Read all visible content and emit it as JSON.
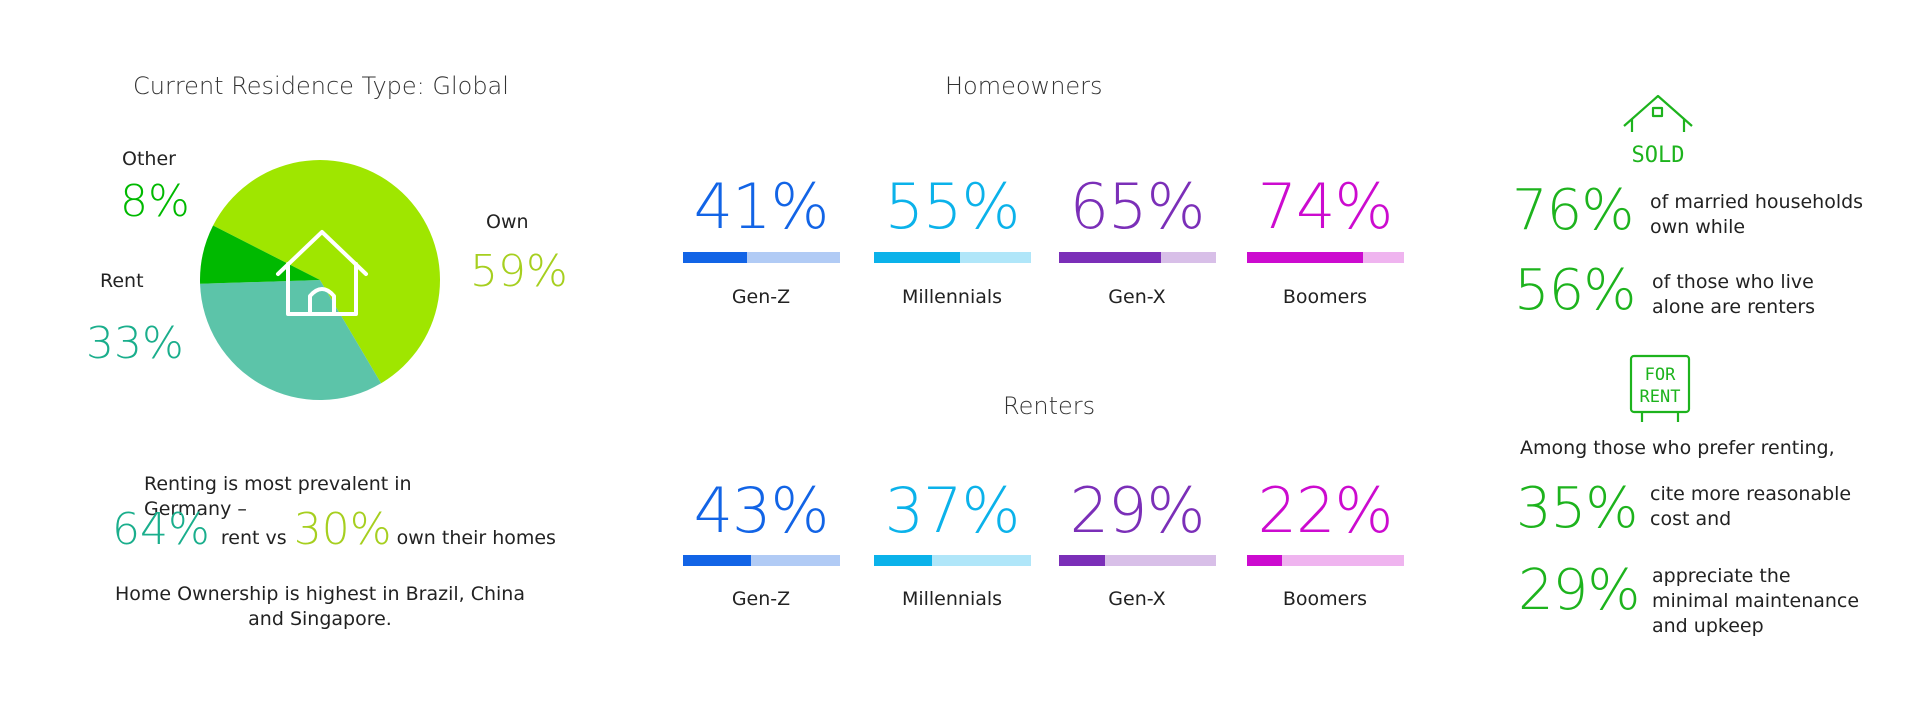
{
  "left": {
    "title": "Current Residence Type: Global",
    "germany_line": "Renting is most prevalent in Germany –",
    "germany_rent_pct": "64%",
    "germany_rent_label": "rent vs",
    "germany_own_pct": "30%",
    "germany_own_label": "own their homes",
    "ownership_line1": "Home Ownership is highest in Brazil, China",
    "ownership_line2": "and Singapore."
  },
  "middle": {
    "homeowners_title": "Homeowners",
    "renters_title": "Renters"
  },
  "right": {
    "sold_sign_text": "SOLD",
    "for_rent_line1": "FOR",
    "for_rent_line2": "RENT",
    "married_pct": "76%",
    "married_text_1": "of married households",
    "married_text_2": "own while",
    "alone_pct": "56%",
    "alone_text_1": "of those who live",
    "alone_text_2": "alone are renters",
    "prefer_text": "Among those who prefer renting,",
    "cost_pct": "35%",
    "cost_text_1": "cite more reasonable",
    "cost_text_2": "cost and",
    "maint_pct": "29%",
    "maint_text_1": "appreciate the",
    "maint_text_2": "minimal maintenance",
    "maint_text_3": "and upkeep"
  },
  "colors": {
    "own": "#9fe600",
    "rent": "#5cc4a9",
    "other": "#00b900",
    "gen_z": "#1264e6",
    "gen_z_light": "#b1cbf5",
    "millennials": "#0bb2ea",
    "millennials_light": "#b0e6f9",
    "gen_x": "#7b2fb8",
    "gen_x_light": "#d8bfe8",
    "boomers": "#cc0bcf",
    "boomers_light": "#efb4ef",
    "green_text": "#1db31d"
  },
  "chart_data": [
    {
      "type": "pie",
      "title": "Current Residence Type: Global",
      "slices": [
        {
          "label": "Own",
          "value": 59,
          "display": "59%"
        },
        {
          "label": "Rent",
          "value": 33,
          "display": "33%"
        },
        {
          "label": "Other",
          "value": 8,
          "display": "8%"
        }
      ]
    },
    {
      "type": "bar",
      "title": "Homeowners",
      "categories": [
        "Gen-Z",
        "Millennials",
        "Gen-X",
        "Boomers"
      ],
      "values": [
        41,
        55,
        65,
        74
      ],
      "display": [
        "41%",
        "55%",
        "65%",
        "74%"
      ]
    },
    {
      "type": "bar",
      "title": "Renters",
      "categories": [
        "Gen-Z",
        "Millennials",
        "Gen-X",
        "Boomers"
      ],
      "values": [
        43,
        37,
        29,
        22
      ],
      "display": [
        "43%",
        "37%",
        "29%",
        "22%"
      ]
    }
  ]
}
